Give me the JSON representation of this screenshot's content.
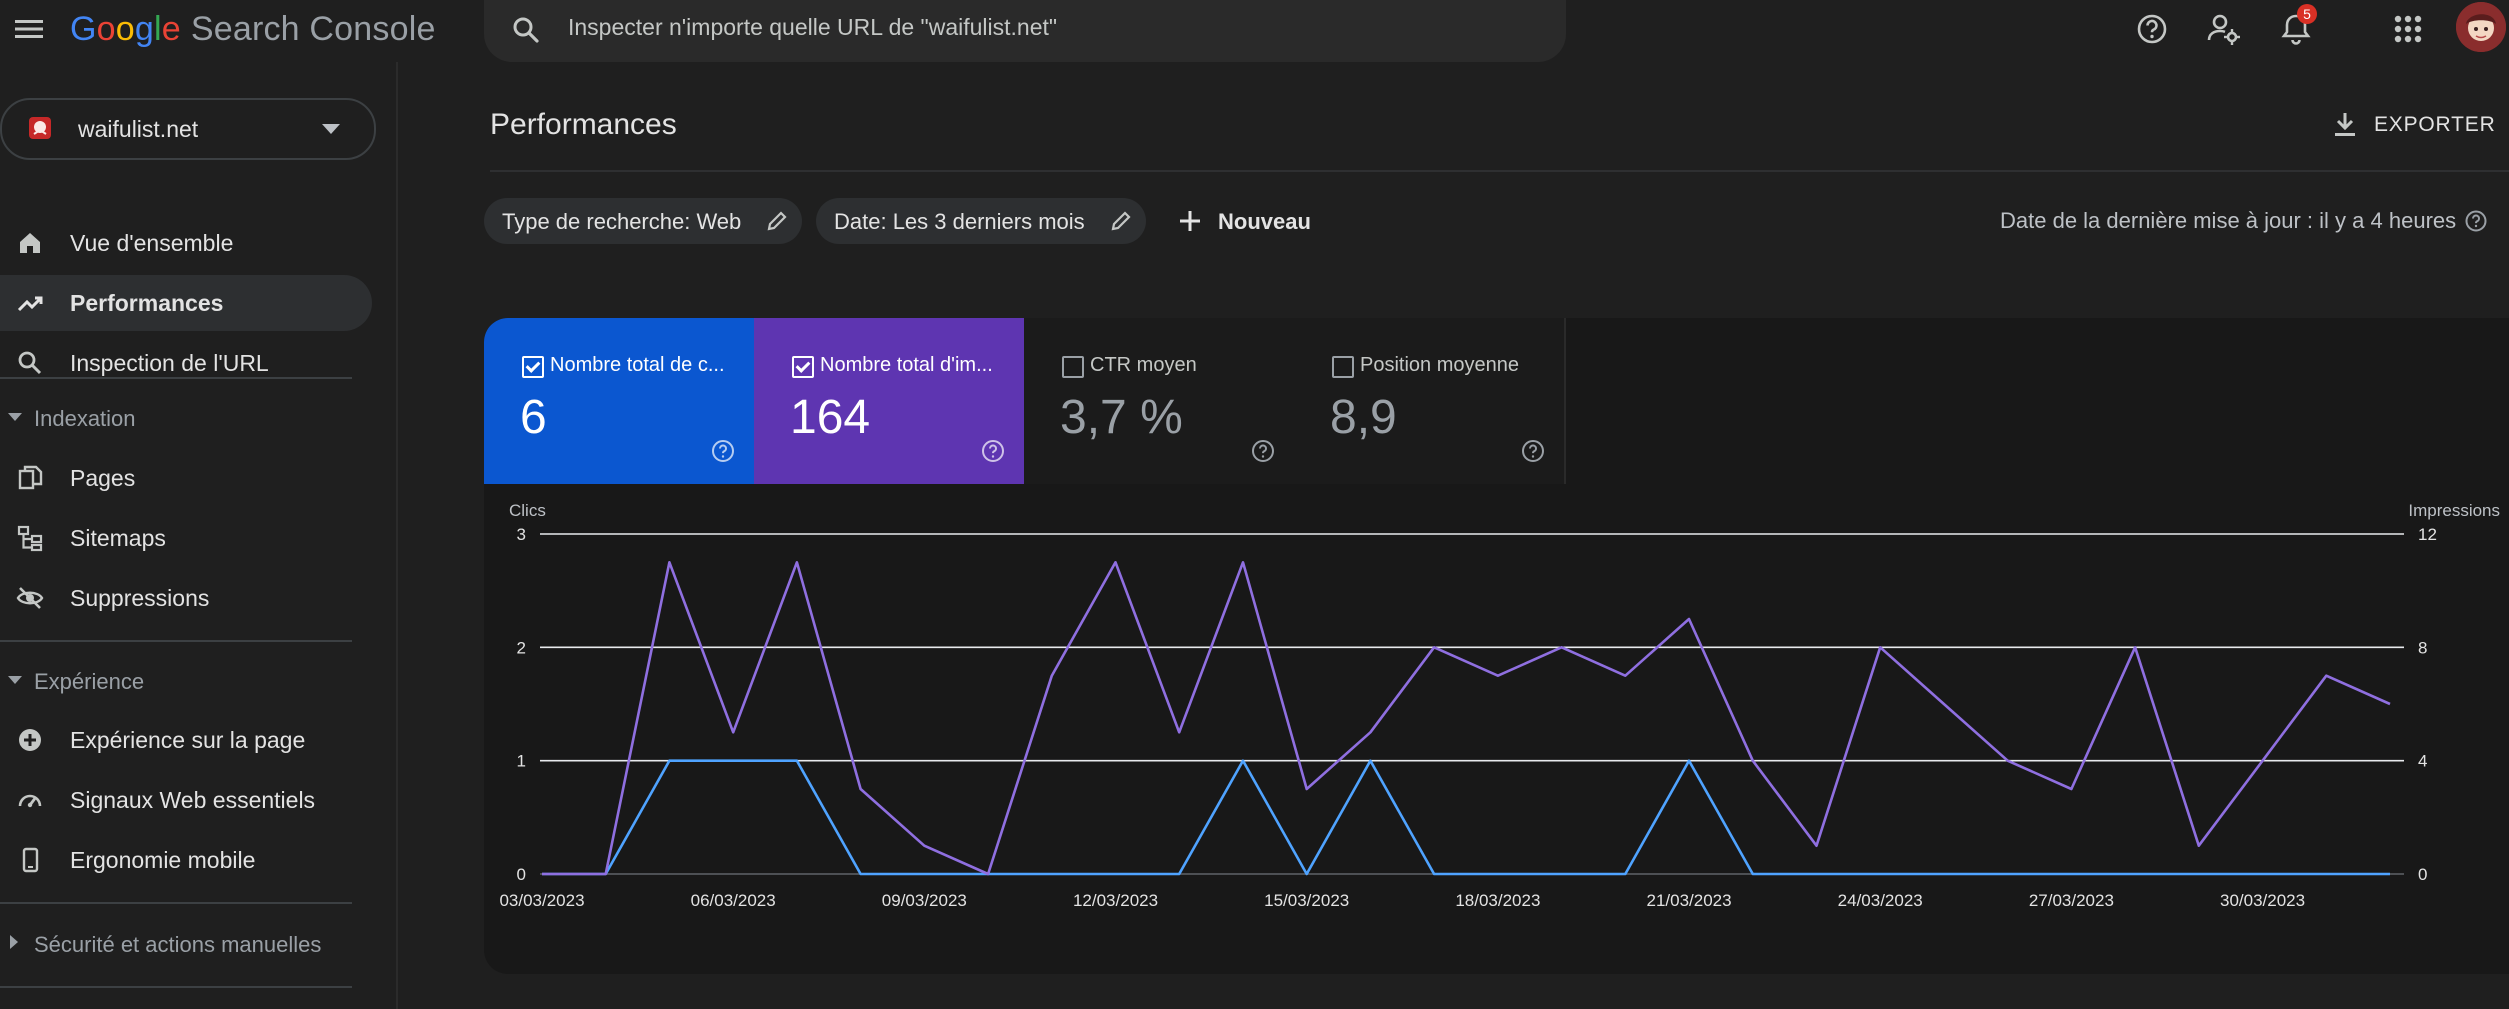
{
  "app": {
    "logo_letters": [
      "G",
      "o",
      "o",
      "g",
      "l",
      "e"
    ],
    "product": "Search Console"
  },
  "search": {
    "placeholder": "Inspecter n'importe quelle URL de \"waifulist.net\""
  },
  "topbar": {
    "notifications_count": "5"
  },
  "sidebar": {
    "property": "waifulist.net",
    "items": [
      {
        "label": "Vue d'ensemble",
        "icon": "home-icon"
      },
      {
        "label": "Performances",
        "icon": "trending-up-icon",
        "active": true
      },
      {
        "label": "Inspection de l'URL",
        "icon": "search-icon"
      }
    ],
    "sections": [
      {
        "title": "Indexation",
        "expanded": true,
        "items": [
          {
            "label": "Pages",
            "icon": "pages-icon"
          },
          {
            "label": "Sitemaps",
            "icon": "sitemap-icon"
          },
          {
            "label": "Suppressions",
            "icon": "eye-off-icon"
          }
        ]
      },
      {
        "title": "Expérience",
        "expanded": true,
        "items": [
          {
            "label": "Expérience sur la page",
            "icon": "plus-circle-icon"
          },
          {
            "label": "Signaux Web essentiels",
            "icon": "speed-gauge-icon"
          },
          {
            "label": "Ergonomie mobile",
            "icon": "smartphone-icon"
          }
        ]
      },
      {
        "title": "Sécurité et actions manuelles",
        "expanded": false,
        "items": []
      }
    ]
  },
  "main": {
    "title": "Performances",
    "export_label": "EXPORTER",
    "filters": [
      {
        "label": "Type de recherche: Web"
      },
      {
        "label": "Date: Les 3 derniers mois"
      }
    ],
    "new_label": "Nouveau",
    "last_update": "Date de la dernière mise à jour : il y a 4 heures"
  },
  "metrics": [
    {
      "label": "Nombre total de c...",
      "value": "6",
      "checked": true,
      "color": "#0b57d0"
    },
    {
      "label": "Nombre total d'im...",
      "value": "164",
      "checked": true,
      "color": "#5e35b1"
    },
    {
      "label": "CTR moyen",
      "value": "3,7 %",
      "checked": false
    },
    {
      "label": "Position moyenne",
      "value": "8,9",
      "checked": false
    }
  ],
  "chart_data": {
    "type": "line",
    "left_axis_label": "Clics",
    "right_axis_label": "Impressions",
    "y_left": {
      "ticks": [
        "0",
        "1",
        "2",
        "3"
      ],
      "lim": [
        0,
        3
      ]
    },
    "y_right": {
      "ticks": [
        "0",
        "4",
        "8",
        "12"
      ],
      "lim": [
        0,
        12
      ]
    },
    "x_tick_labels": [
      "03/03/2023",
      "06/03/2023",
      "09/03/2023",
      "12/03/2023",
      "15/03/2023",
      "18/03/2023",
      "21/03/2023",
      "24/03/2023",
      "27/03/2023",
      "30/03/2023"
    ],
    "x": [
      "03/03/2023",
      "04/03/2023",
      "05/03/2023",
      "06/03/2023",
      "07/03/2023",
      "08/03/2023",
      "09/03/2023",
      "10/03/2023",
      "11/03/2023",
      "12/03/2023",
      "13/03/2023",
      "14/03/2023",
      "15/03/2023",
      "16/03/2023",
      "17/03/2023",
      "18/03/2023",
      "19/03/2023",
      "20/03/2023",
      "21/03/2023",
      "22/03/2023",
      "23/03/2023",
      "24/03/2023",
      "25/03/2023",
      "26/03/2023",
      "27/03/2023",
      "28/03/2023",
      "29/03/2023",
      "30/03/2023",
      "31/03/2023",
      "01/04/2023"
    ],
    "series": [
      {
        "metric": "clicks",
        "axis": "left",
        "color": "#4fa3ff",
        "values": [
          0,
          0,
          1,
          1,
          1,
          0,
          0,
          0,
          0,
          0,
          0,
          1,
          0,
          1,
          0,
          0,
          0,
          0,
          1,
          0,
          0,
          0,
          0,
          0,
          0,
          0,
          0,
          0,
          0,
          0
        ]
      },
      {
        "metric": "impressions",
        "axis": "right",
        "color": "#8f6fe0",
        "values": [
          0,
          0,
          11,
          5,
          11,
          3,
          1,
          0,
          7,
          11,
          5,
          11,
          3,
          5,
          8,
          7,
          8,
          7,
          9,
          4,
          1,
          8,
          6,
          4,
          3,
          8,
          1,
          4,
          7,
          6
        ]
      }
    ],
    "grid": true
  },
  "colors": {
    "background": "#1f1f1f",
    "clicks": "#0b57d0",
    "impressions": "#5e35b1"
  }
}
